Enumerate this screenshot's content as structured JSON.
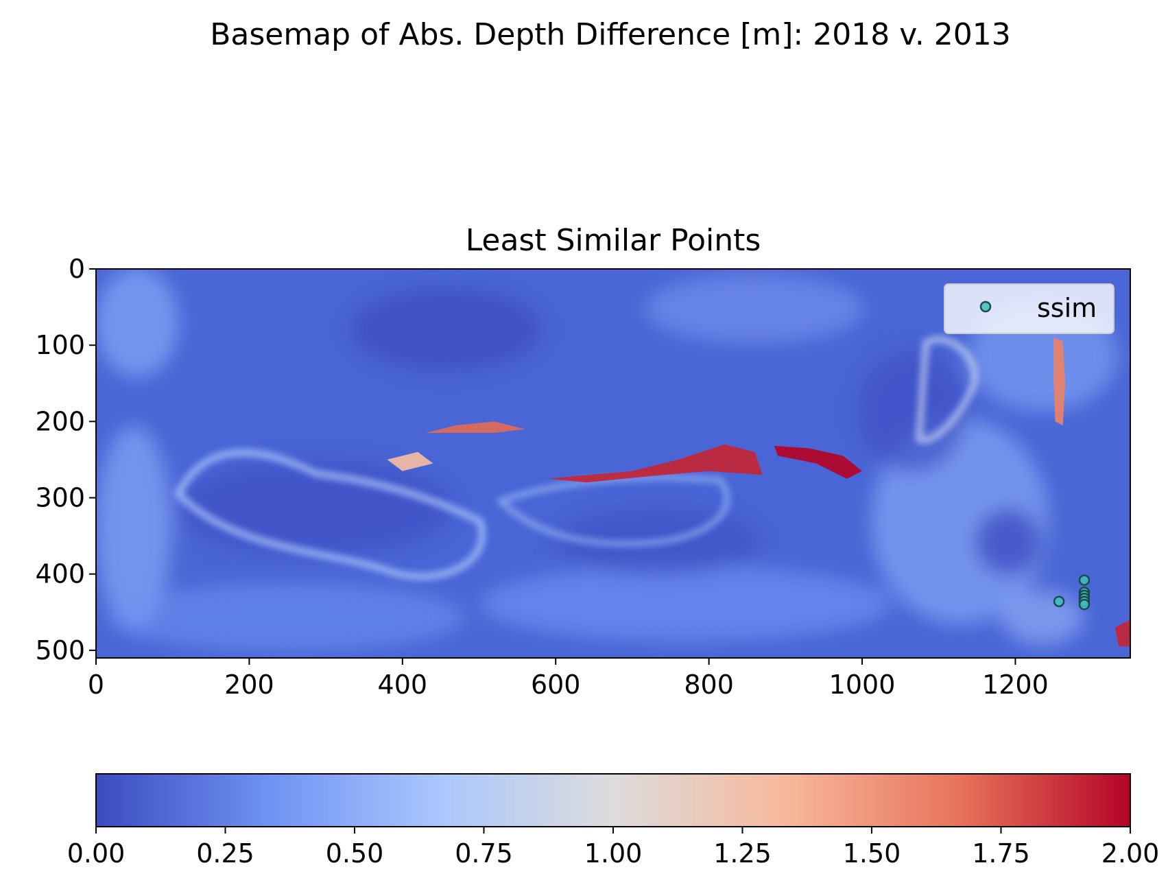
{
  "figure": {
    "suptitle": "Basemap of Abs. Depth Difference [m]: 2018 v. 2013"
  },
  "chart_data": {
    "type": "heatmap",
    "title": "Least Similar Points",
    "xlabel": "",
    "ylabel": "",
    "xlim": [
      0,
      1350
    ],
    "ylim": [
      510,
      0
    ],
    "x_ticks": [
      "0",
      "200",
      "400",
      "600",
      "800",
      "1000",
      "1200"
    ],
    "x_tick_values": [
      0,
      200,
      400,
      600,
      800,
      1000,
      1200
    ],
    "y_ticks": [
      "0",
      "100",
      "200",
      "300",
      "400",
      "500"
    ],
    "y_tick_values": [
      0,
      100,
      200,
      300,
      400,
      500
    ],
    "colormap": "coolwarm",
    "colormap_stops": [
      "#3b4cc0",
      "#6f92f3",
      "#aac7fd",
      "#dddcdc",
      "#f7b89c",
      "#e7745b",
      "#b40426"
    ],
    "value_range": [
      0,
      2
    ],
    "colorbar": {
      "orientation": "horizontal",
      "ticks": [
        "0.00",
        "0.25",
        "0.50",
        "0.75",
        "1.00",
        "1.25",
        "1.50",
        "1.75",
        "2.00"
      ],
      "tick_values": [
        0,
        0.25,
        0.5,
        0.75,
        1.0,
        1.25,
        1.5,
        1.75,
        2.0
      ]
    },
    "high_difference_features": [
      {
        "points": [
          [
            430,
            215
          ],
          [
            470,
            205
          ],
          [
            520,
            200
          ],
          [
            560,
            210
          ],
          [
            520,
            215
          ],
          [
            470,
            215
          ]
        ],
        "value": 1.7
      },
      {
        "points": [
          [
            590,
            275
          ],
          [
            700,
            265
          ],
          [
            760,
            250
          ],
          [
            820,
            230
          ],
          [
            860,
            240
          ],
          [
            870,
            270
          ],
          [
            800,
            265
          ],
          [
            720,
            272
          ],
          [
            640,
            280
          ]
        ],
        "value": 1.9
      },
      {
        "points": [
          [
            885,
            232
          ],
          [
            930,
            235
          ],
          [
            975,
            245
          ],
          [
            1000,
            265
          ],
          [
            980,
            275
          ],
          [
            940,
            255
          ],
          [
            890,
            245
          ]
        ],
        "value": 2.0
      },
      {
        "points": [
          [
            1250,
            90
          ],
          [
            1262,
            95
          ],
          [
            1265,
            150
          ],
          [
            1262,
            205
          ],
          [
            1252,
            200
          ],
          [
            1250,
            150
          ]
        ],
        "value": 1.6
      },
      {
        "points": [
          [
            380,
            250
          ],
          [
            420,
            240
          ],
          [
            440,
            255
          ],
          [
            400,
            265
          ]
        ],
        "value": 1.3
      },
      {
        "points": [
          [
            1330,
            470
          ],
          [
            1350,
            460
          ],
          [
            1350,
            495
          ],
          [
            1335,
            495
          ]
        ],
        "value": 1.9
      }
    ],
    "series": [
      {
        "name": "ssim",
        "color": "#40c0c0",
        "edgecolor": "#1a4a4a",
        "points": [
          {
            "x": 1257,
            "y": 436
          },
          {
            "x": 1290,
            "y": 408
          },
          {
            "x": 1290,
            "y": 424
          },
          {
            "x": 1290,
            "y": 428
          },
          {
            "x": 1290,
            "y": 432
          },
          {
            "x": 1290,
            "y": 436
          },
          {
            "x": 1290,
            "y": 440
          }
        ]
      }
    ],
    "legend": {
      "location": "top-right",
      "entries": [
        "ssim"
      ]
    }
  }
}
